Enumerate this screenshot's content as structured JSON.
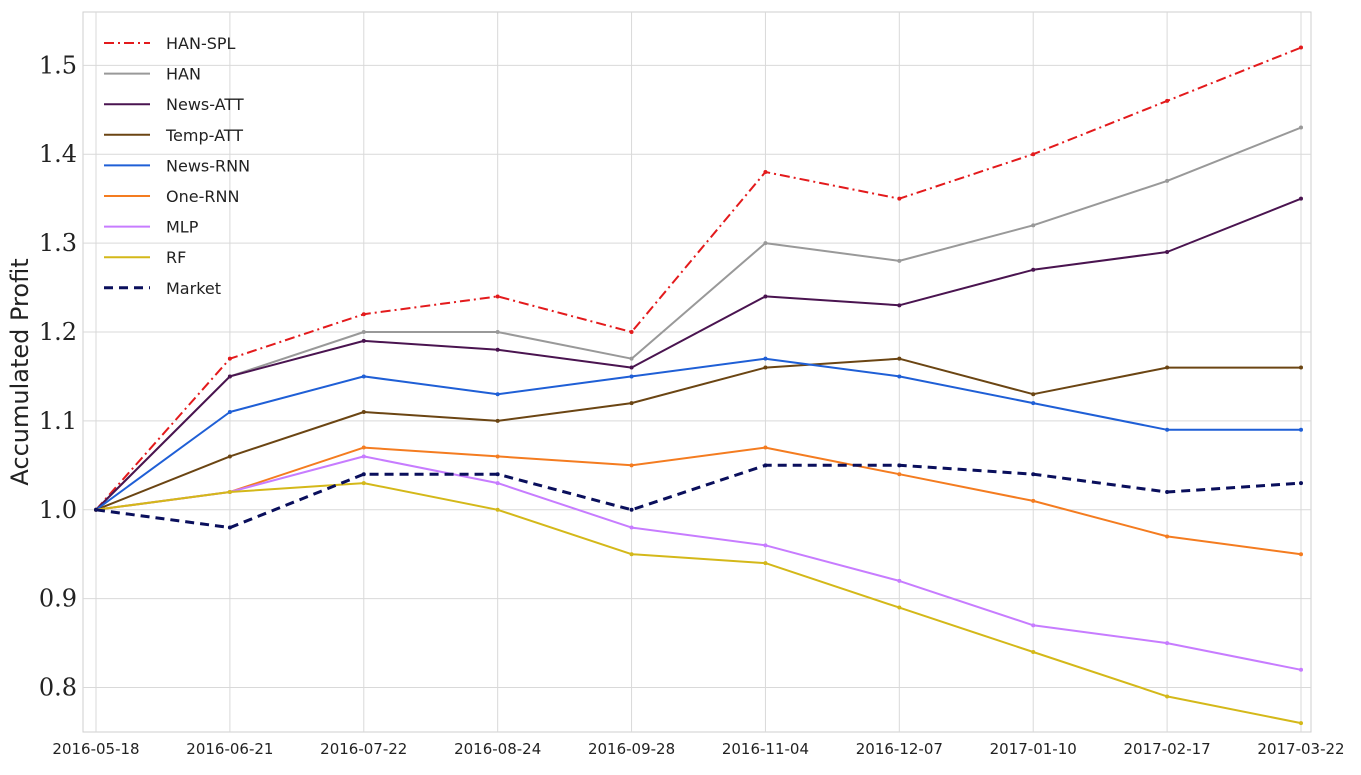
{
  "chart_data": {
    "type": "line",
    "title": "",
    "xlabel": "",
    "ylabel": "Accumulated Profit",
    "ylim": [
      0.75,
      1.56
    ],
    "yticks": [
      0.8,
      0.9,
      1.0,
      1.1,
      1.2,
      1.3,
      1.4,
      1.5
    ],
    "ytick_labels": [
      "0.8",
      "0.9",
      "1.0",
      "1.1",
      "1.2",
      "1.3",
      "1.4",
      "1.5"
    ],
    "grid": true,
    "legend_position": "top-left",
    "x": [
      "2016-05-18",
      "2016-06-21",
      "2016-07-22",
      "2016-08-24",
      "2016-09-28",
      "2016-11-04",
      "2016-12-07",
      "2017-01-10",
      "2017-02-17",
      "2017-03-22"
    ],
    "series": [
      {
        "name": "HAN-SPL",
        "color": "#e31a1c",
        "dash": "dashdot",
        "values": [
          1.0,
          1.17,
          1.22,
          1.24,
          1.2,
          1.38,
          1.35,
          1.4,
          1.46,
          1.52
        ]
      },
      {
        "name": "HAN",
        "color": "#999999",
        "dash": "solid",
        "values": [
          1.0,
          1.15,
          1.2,
          1.2,
          1.17,
          1.3,
          1.28,
          1.32,
          1.37,
          1.43
        ]
      },
      {
        "name": "News-ATT",
        "color": "#4a1450",
        "dash": "solid",
        "values": [
          1.0,
          1.15,
          1.19,
          1.18,
          1.16,
          1.24,
          1.23,
          1.27,
          1.29,
          1.35
        ]
      },
      {
        "name": "Temp-ATT",
        "color": "#6b4513",
        "dash": "solid",
        "values": [
          1.0,
          1.06,
          1.11,
          1.1,
          1.12,
          1.16,
          1.17,
          1.13,
          1.16,
          1.16
        ]
      },
      {
        "name": "News-RNN",
        "color": "#1f5fd6",
        "dash": "solid",
        "values": [
          1.0,
          1.11,
          1.15,
          1.13,
          1.15,
          1.17,
          1.15,
          1.12,
          1.09,
          1.09
        ]
      },
      {
        "name": "One-RNN",
        "color": "#f47c20",
        "dash": "solid",
        "values": [
          1.0,
          1.02,
          1.07,
          1.06,
          1.05,
          1.07,
          1.04,
          1.01,
          0.97,
          0.95
        ]
      },
      {
        "name": "MLP",
        "color": "#c77cff",
        "dash": "solid",
        "values": [
          1.0,
          1.02,
          1.06,
          1.03,
          0.98,
          0.96,
          0.92,
          0.87,
          0.85,
          0.82
        ]
      },
      {
        "name": "RF",
        "color": "#d4b819",
        "dash": "solid",
        "values": [
          1.0,
          1.02,
          1.03,
          1.0,
          0.95,
          0.94,
          0.89,
          0.84,
          0.79,
          0.76
        ]
      },
      {
        "name": "Market",
        "color": "#0a0f5c",
        "dash": "dashed",
        "values": [
          1.0,
          0.98,
          1.04,
          1.04,
          1.0,
          1.05,
          1.05,
          1.04,
          1.02,
          1.03
        ]
      }
    ]
  }
}
